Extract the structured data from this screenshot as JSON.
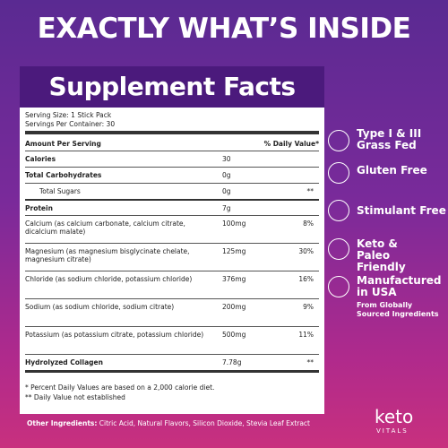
{
  "header": {
    "title": "EXACTLY WHAT’S INSIDE"
  },
  "panel": {
    "title": "Supplement Facts",
    "serving_size": "Serving Size: 1 Stick Pack",
    "servings": "Servings Per Container: 30",
    "col_amount": "Amount Per Serving",
    "col_dv": "% Daily Value*",
    "rows": [
      {
        "name": "Calories",
        "amount": "30"
      },
      {
        "name": "Total Carbohydrates",
        "amount": "0g"
      },
      {
        "name": "Total Sugars",
        "amount": "0g",
        "dv": "**"
      },
      {
        "name": "Protein",
        "amount": "7g"
      },
      {
        "name": "Calcium (as calcium carbonate, calcium citrate, dicalcium malate)",
        "amount": "100mg",
        "dv": "8%"
      },
      {
        "name": "Magnesium (as magnesium bisglycinate chelate, magnesium citrate)",
        "amount": "125mg",
        "dv": "30%"
      },
      {
        "name": "Chloride (as sodium chloride, potassium chloride)",
        "amount": "376mg",
        "dv": "16%"
      },
      {
        "name": "Sodium (as sodium chloride, sodium citrate)",
        "amount": "200mg",
        "dv": "9%"
      },
      {
        "name": "Potassium (as potassium citrate, potassium chloride)",
        "amount": "500mg",
        "dv": "11%"
      },
      {
        "name": "Hydrolyzed Collagen",
        "amount": "7.78g",
        "dv": "**"
      }
    ],
    "footnotes": [
      "* Percent Daily Values are based on a 2,000 calorie diet.",
      "** Daily Value not established"
    ]
  },
  "features": [
    {
      "title": "Type I & III Grass Fed"
    },
    {
      "title": "Gluten Free"
    },
    {
      "title": "Stimulant Free"
    },
    {
      "title": "Keto & Paleo Friendly"
    },
    {
      "title": "Manufactured in USA",
      "subtitle": "From Globally Sourced Ingredients"
    }
  ],
  "other_ingredients": {
    "label": "Other Ingredients:",
    "text": "Citric Acid, Natural Flavors, Silicon Dioxide, Stevia Leaf Extract"
  },
  "brand": {
    "name": "keto",
    "tagline": "VITALS"
  }
}
